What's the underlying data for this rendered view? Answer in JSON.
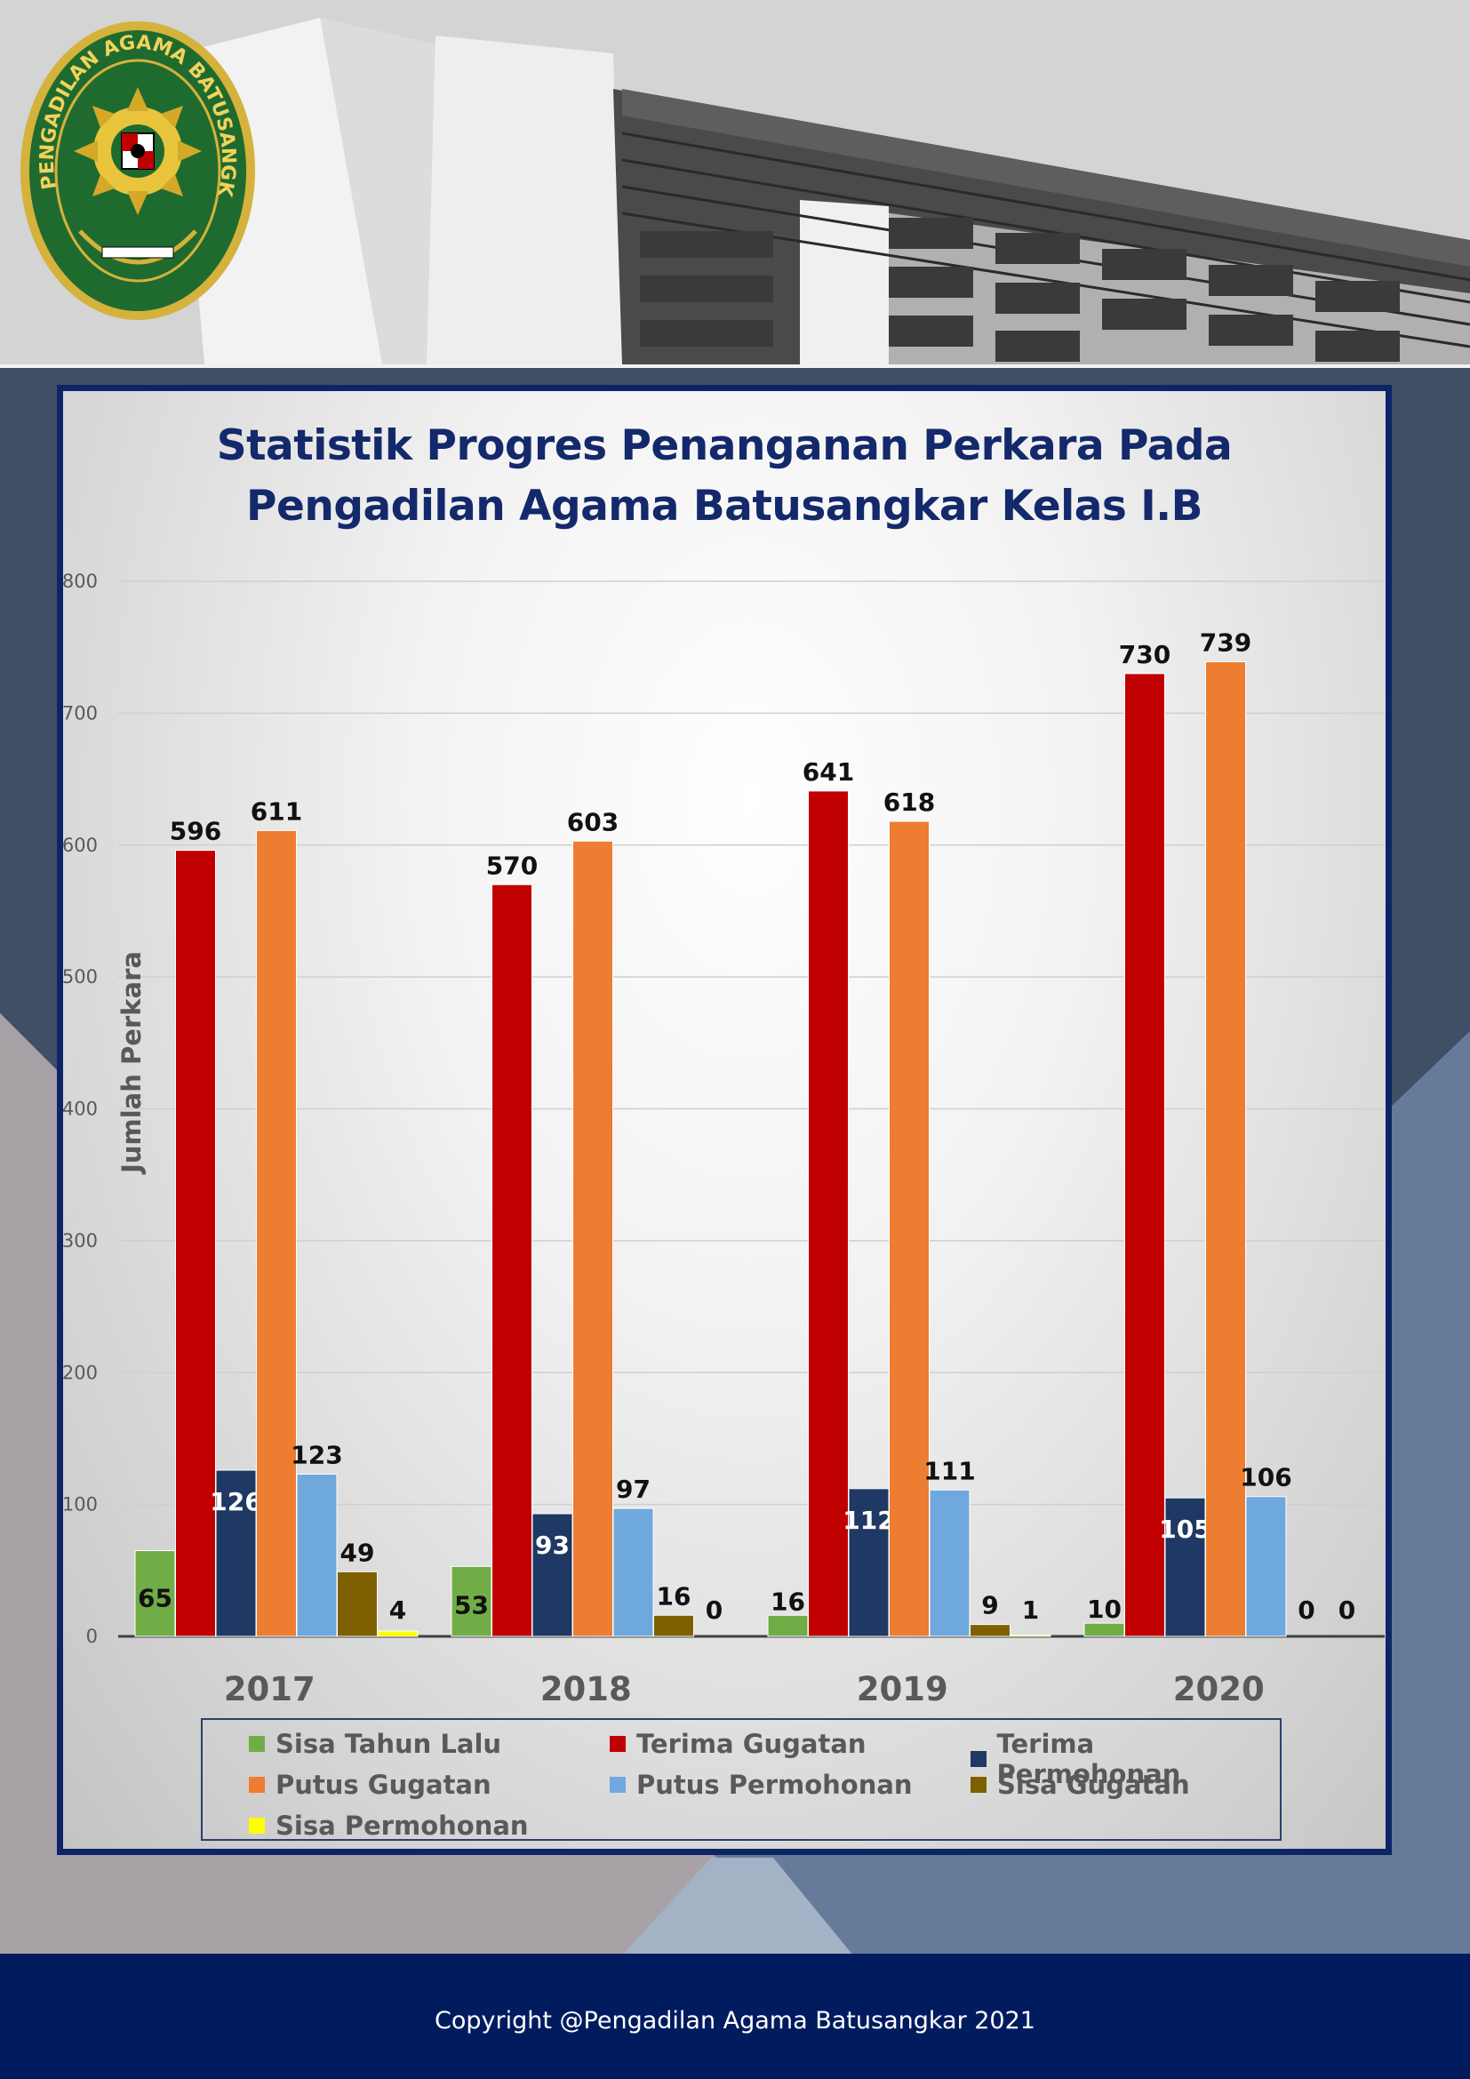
{
  "colors": {
    "sisa_tahun_lalu": "#70ad47",
    "terima_gugatan": "#c00000",
    "terima_permohonan": "#1f3864",
    "putus_gugatan": "#ed7d31",
    "putus_permohonan": "#6fa8dc",
    "sisa_gugatan": "#7f6000",
    "sisa_permohonan": "#ffff00",
    "title": "#13296b",
    "frame": "#0d2566",
    "footer_bg": "#001c5e"
  },
  "header": {
    "logo": {
      "icon": "court-emblem",
      "text": "PENGADILAN AGAMA BATUSANGKAR"
    }
  },
  "chart_data": {
    "type": "bar",
    "title": "Statistik Progres Penanganan Perkara Pada Pengadilan Agama Batusangkar Kelas I.B",
    "title_lines": [
      "Statistik Progres Penanganan Perkara Pada",
      "Pengadilan Agama Batusangkar Kelas I.B"
    ],
    "xlabel": "",
    "ylabel": "Jumlah Perkara",
    "ylim": [
      0,
      800
    ],
    "yticks": [
      0,
      100,
      200,
      300,
      400,
      500,
      600,
      700,
      800
    ],
    "grid": true,
    "legend_position": "bottom",
    "categories": [
      "2017",
      "2018",
      "2019",
      "2020"
    ],
    "series": [
      {
        "name": "Sisa Tahun Lalu",
        "values": [
          65,
          53,
          16,
          10
        ]
      },
      {
        "name": "Terima Gugatan",
        "values": [
          596,
          570,
          641,
          730
        ]
      },
      {
        "name": "Terima Permohonan",
        "values": [
          126,
          93,
          112,
          105
        ]
      },
      {
        "name": "Putus Gugatan",
        "values": [
          611,
          603,
          618,
          739
        ]
      },
      {
        "name": "Putus Permohonan",
        "values": [
          123,
          97,
          111,
          106
        ]
      },
      {
        "name": "Sisa Gugatan",
        "values": [
          49,
          16,
          9,
          0
        ]
      },
      {
        "name": "Sisa Permohonan",
        "values": [
          4,
          0,
          1,
          0
        ]
      }
    ]
  },
  "footer": {
    "copyright": "Copyright @Pengadilan Agama Batusangkar 2021"
  }
}
